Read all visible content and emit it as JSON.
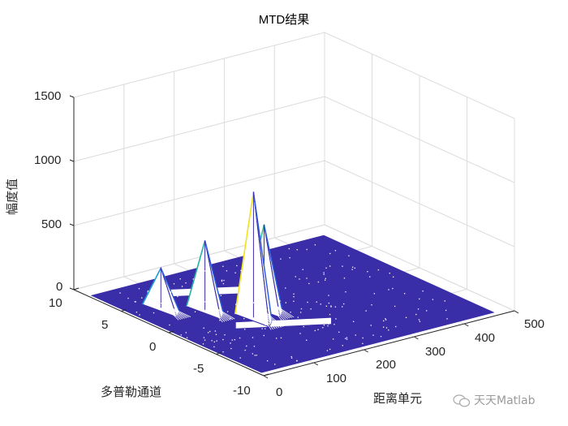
{
  "chart_data": {
    "type": "surface-3d",
    "title": "MTD结果",
    "xlabel": "距离单元",
    "ylabel": "多普勒通道",
    "zlabel": "幅度值",
    "x_ticks": [
      0,
      100,
      200,
      300,
      400,
      500
    ],
    "y_ticks": [
      10,
      5,
      0,
      -5,
      -10
    ],
    "z_ticks": [
      0,
      500,
      1000,
      1500
    ],
    "xlim": [
      0,
      500
    ],
    "ylim": [
      -10,
      10
    ],
    "zlim": [
      0,
      1500
    ],
    "grid": true,
    "colormap": "parula",
    "floor_color": "#3a2ea8",
    "peaks": [
      {
        "range_cell": 60,
        "doppler": 4,
        "amplitude": 310
      },
      {
        "range_cell": 110,
        "doppler": 2,
        "amplitude": 540
      },
      {
        "range_cell": 150,
        "doppler": -1,
        "amplitude": 980
      },
      {
        "range_cell": 190,
        "doppler": 0,
        "amplitude": 650
      }
    ]
  },
  "labels": {
    "title": "MTD结果",
    "zlabel": "幅度值",
    "ylabel": "多普勒通道",
    "xlabel": "距离单元",
    "z_ticks": [
      "1500",
      "1000",
      "500",
      "0"
    ],
    "y_ticks": [
      "10",
      "5",
      "0",
      "-5",
      "-10"
    ],
    "x_ticks": [
      "0",
      "100",
      "200",
      "300",
      "400",
      "500"
    ]
  },
  "watermark": {
    "text": "天天Matlab",
    "icon": "wechat-icon"
  }
}
